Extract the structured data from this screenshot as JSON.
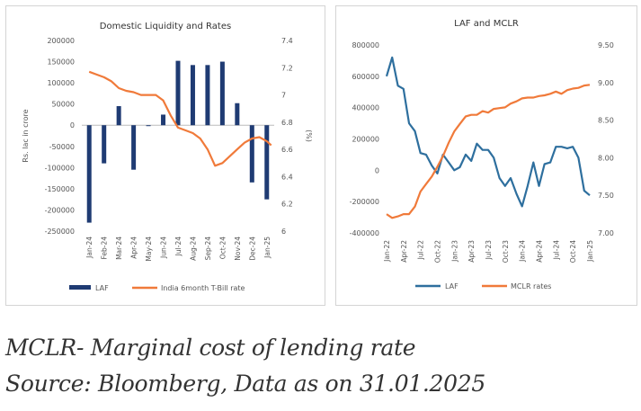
{
  "captions": {
    "line1": "MCLR- Marginal cost of lending rate",
    "line2": "Source: Bloomberg, Data as on 31.01.2025"
  },
  "chart_data": [
    {
      "type": "bar",
      "title": "Domestic Liquidity and Rates",
      "ylabel": "Rs. lac in crore",
      "y2label": "(%)",
      "categories": [
        "Jan-24",
        "Feb-24",
        "Mar-24",
        "Apr-24",
        "May-24",
        "Jun-24",
        "Jul-24",
        "Aug-24",
        "Sep-24",
        "Oct-24",
        "Nov-24",
        "Dec-24",
        "Jan-25"
      ],
      "series": [
        {
          "name": "LAF",
          "kind": "bar",
          "axis": "left",
          "color": "#1f3b73",
          "values": [
            -230000,
            -90000,
            45000,
            -105000,
            -2000,
            25000,
            152000,
            142000,
            142000,
            150000,
            52000,
            -135000,
            -175000
          ]
        },
        {
          "name": "India 6month T-Bill rate",
          "kind": "line",
          "axis": "right",
          "color": "#f07a3a",
          "x": [
            0,
            0.5,
            1,
            1.5,
            2,
            2.5,
            3,
            3.5,
            4,
            4.5,
            5,
            5.5,
            6,
            6.5,
            7,
            7.5,
            8,
            8.5,
            9,
            9.5,
            10,
            10.5,
            11,
            11.5,
            12,
            12.3
          ],
          "values": [
            7.17,
            7.15,
            7.13,
            7.1,
            7.05,
            7.03,
            7.02,
            7.0,
            7.0,
            7.0,
            6.96,
            6.85,
            6.76,
            6.74,
            6.72,
            6.68,
            6.6,
            6.48,
            6.5,
            6.55,
            6.6,
            6.65,
            6.68,
            6.69,
            6.66,
            6.63
          ]
        }
      ],
      "ylim": [
        -250000,
        200000
      ],
      "yticks": [
        "200000",
        "150000",
        "100000",
        "50000",
        "0",
        "-50000",
        "-100000",
        "-150000",
        "-200000",
        "-250000"
      ],
      "y2lim": [
        6.0,
        7.4
      ],
      "y2ticks": [
        "7.4",
        "7.2",
        "7",
        "6.8",
        "6.6",
        "6.4",
        "6.2",
        "6"
      ],
      "legend_position": "bottom"
    },
    {
      "type": "line",
      "title": "LAF and MCLR",
      "categories": [
        "Jan-22",
        "Apr-22",
        "Jul-22",
        "Oct-22",
        "Jan-23",
        "Apr-23",
        "Jul-23",
        "Oct-23",
        "Jan-24",
        "Apr-24",
        "Jul-24",
        "Oct-24",
        "Jan-25"
      ],
      "series": [
        {
          "name": "LAF",
          "axis": "left",
          "color": "#2e6f9e",
          "x": [
            0,
            0.33,
            0.67,
            1,
            1.33,
            1.67,
            2,
            2.33,
            2.67,
            3,
            3.33,
            3.67,
            4,
            4.33,
            4.67,
            5,
            5.33,
            5.67,
            6,
            6.33,
            6.67,
            7,
            7.33,
            7.67,
            8,
            8.33,
            8.67,
            9,
            9.33,
            9.67,
            10,
            10.33,
            10.67,
            11,
            11.33,
            11.67,
            12
          ],
          "values": [
            600000,
            720000,
            540000,
            520000,
            300000,
            250000,
            110000,
            100000,
            30000,
            -20000,
            100000,
            50000,
            0,
            20000,
            100000,
            60000,
            170000,
            130000,
            130000,
            80000,
            -50000,
            -100000,
            -50000,
            -150000,
            -230000,
            -100000,
            50000,
            -100000,
            40000,
            50000,
            150000,
            150000,
            140000,
            150000,
            80000,
            -130000,
            -160000
          ]
        },
        {
          "name": "MCLR rates",
          "axis": "right",
          "color": "#f07a3a",
          "x": [
            0,
            0.33,
            0.67,
            1,
            1.33,
            1.67,
            2,
            2.33,
            2.67,
            3,
            3.33,
            3.67,
            4,
            4.33,
            4.67,
            5,
            5.33,
            5.67,
            6,
            6.33,
            6.67,
            7,
            7.33,
            7.67,
            8,
            8.33,
            8.67,
            9,
            9.33,
            9.67,
            10,
            10.33,
            10.67,
            11,
            11.33,
            11.67,
            12
          ],
          "values": [
            7.25,
            7.2,
            7.22,
            7.25,
            7.25,
            7.35,
            7.55,
            7.65,
            7.75,
            7.88,
            8.02,
            8.2,
            8.35,
            8.45,
            8.55,
            8.57,
            8.57,
            8.62,
            8.6,
            8.65,
            8.66,
            8.67,
            8.72,
            8.75,
            8.79,
            8.8,
            8.8,
            8.82,
            8.83,
            8.85,
            8.88,
            8.85,
            8.9,
            8.92,
            8.93,
            8.96,
            8.97
          ]
        }
      ],
      "ylim": [
        -400000,
        800000
      ],
      "yticks": [
        "800000",
        "600000",
        "400000",
        "200000",
        "0",
        "-200000",
        "-400000"
      ],
      "y2lim": [
        7.0,
        9.5
      ],
      "y2ticks": [
        "9.50",
        "9.00",
        "8.50",
        "8.00",
        "7.50",
        "7.00"
      ],
      "legend_position": "bottom"
    }
  ]
}
